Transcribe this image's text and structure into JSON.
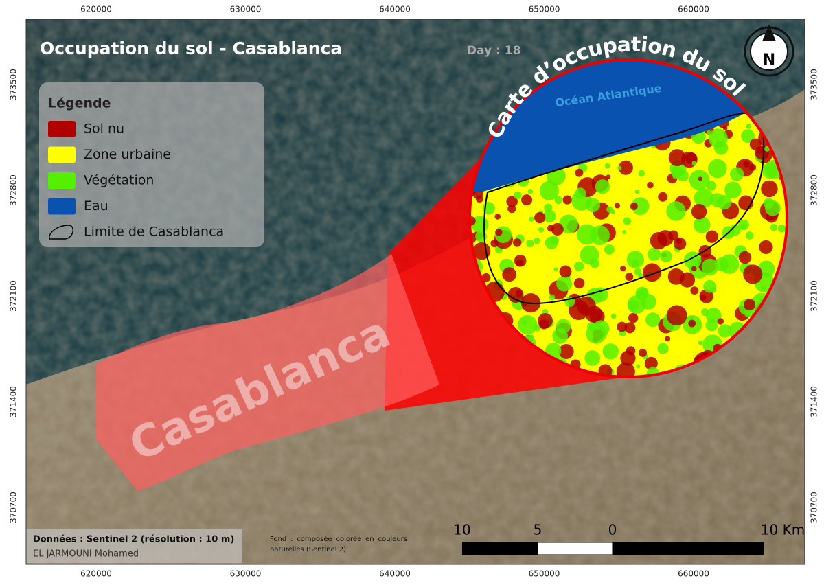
{
  "title": "Occupation du sol - Casablanca",
  "day": "Day : 18",
  "legend": {
    "title": "Légende",
    "items": [
      {
        "label": "Sol nu",
        "color": "#b00000"
      },
      {
        "label": "Zone urbaine",
        "color": "#ffff00"
      },
      {
        "label": "Végétation",
        "color": "#55f000"
      },
      {
        "label": "Eau",
        "color": "#0a52b0"
      },
      {
        "label": "Limite de Casablanca",
        "color": "#000000"
      }
    ]
  },
  "inset": {
    "title": "Carte d’occupation du sol",
    "ocean": "Océan Atlantique"
  },
  "city_label": "Casablanca",
  "north": "N",
  "grid": {
    "x_labels": [
      620000,
      630000,
      640000,
      650000,
      660000
    ],
    "y_labels": [
      373500,
      372800,
      372100,
      371400,
      370700
    ]
  },
  "credits": {
    "data": "Données : Sentinel 2 (résolution : 10 m)",
    "author": "EL JARMOUNI Mohamed",
    "background": "Fond : composée colorée en couleurs naturelles (Sentinel 2)"
  },
  "scale": {
    "labels": [
      "10",
      "5",
      "0",
      "10 Km"
    ]
  }
}
